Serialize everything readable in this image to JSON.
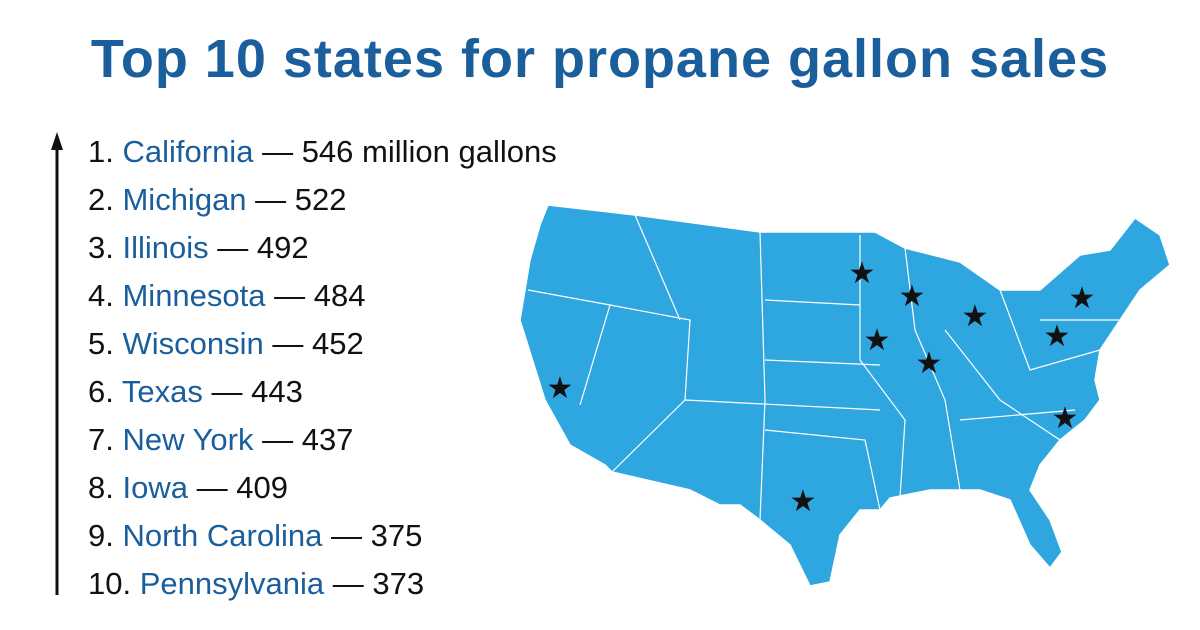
{
  "title": "Top 10 states for propane gallon sales",
  "dash": "—",
  "unit": "million gallons",
  "items": [
    {
      "rank": "1.",
      "state": "California",
      "value": 546
    },
    {
      "rank": "2.",
      "state": "Michigan",
      "value": 522
    },
    {
      "rank": "3.",
      "state": "Illinois",
      "value": 492
    },
    {
      "rank": "4.",
      "state": "Minnesota",
      "value": 484
    },
    {
      "rank": "5.",
      "state": "Wisconsin",
      "value": 452
    },
    {
      "rank": "6.",
      "state": "Texas",
      "value": 443
    },
    {
      "rank": "7.",
      "state": "New York",
      "value": 437
    },
    {
      "rank": "8.",
      "state": "Iowa",
      "value": 409
    },
    {
      "rank": "9.",
      "state": "North Carolina",
      "value": 375
    },
    {
      "rank": "10.",
      "state": "Pennsylvania",
      "value": 373
    }
  ]
}
